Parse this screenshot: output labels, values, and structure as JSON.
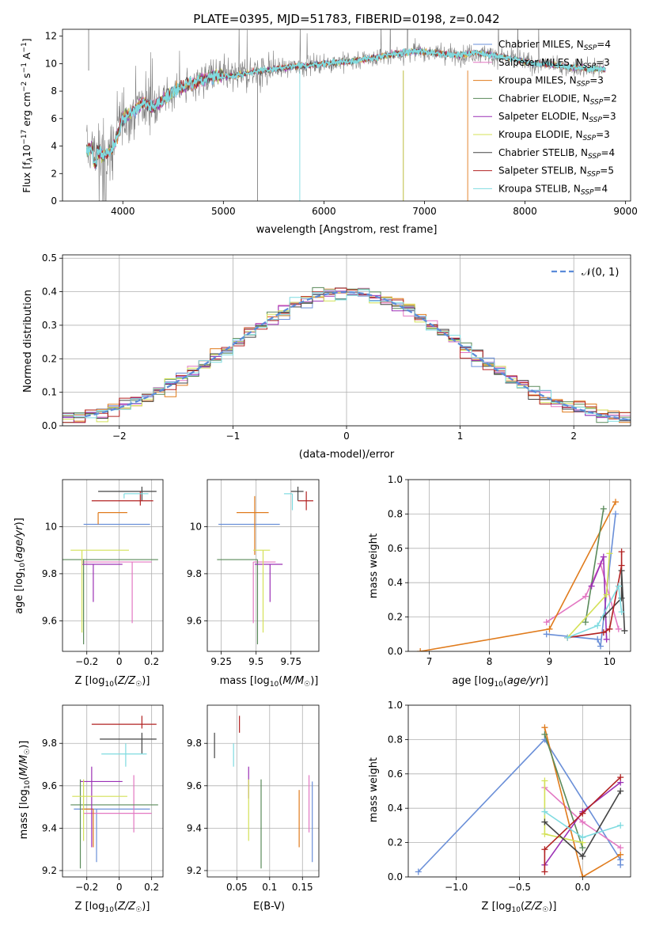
{
  "chart_data": [
    {
      "type": "line",
      "title": "PLATE=0395, MJD=51783, FIBERID=0198, z=0.042",
      "xlabel": "wavelength [Angstrom, rest frame]",
      "ylabel": "Flux [f_λ10^-17 erg cm^-2 s^-1 A^-1]",
      "xlim": [
        3400,
        9050
      ],
      "ylim": [
        0,
        12.5
      ],
      "xticks": [
        4000,
        5000,
        6000,
        7000,
        8000,
        9000
      ],
      "yticks": [
        0,
        2,
        4,
        6,
        8,
        10,
        12
      ],
      "legend": "top-right",
      "series": [
        {
          "name": "Chabrier MILES, N_SSP=4",
          "color": "#6a8fd8"
        },
        {
          "name": "Salpeter MILES, N_SSP=3",
          "color": "#e377c2"
        },
        {
          "name": "Kroupa MILES, N_SSP=3",
          "color": "#e07b1c"
        },
        {
          "name": "Chabrier ELODIE, N_SSP=2",
          "color": "#5a8a5a"
        },
        {
          "name": "Salpeter ELODIE, N_SSP=3",
          "color": "#9b30b5"
        },
        {
          "name": "Kroupa ELODIE, N_SSP=3",
          "color": "#d4e157"
        },
        {
          "name": "Chabrier STELIB, N_SSP=4",
          "color": "#444444"
        },
        {
          "name": "Salpeter STELIB, N_SSP=5",
          "color": "#b22222"
        },
        {
          "name": "Kroupa STELIB, N_SSP=4",
          "color": "#7fdbe0"
        }
      ],
      "data_color": "#808080",
      "continuum": {
        "x": [
          3650,
          3700,
          3800,
          3900,
          4000,
          4100,
          4200,
          4300,
          4500,
          4700,
          4900,
          5100,
          5300,
          5500,
          5700,
          5900,
          6100,
          6300,
          6500,
          6700,
          6900,
          7100,
          7300,
          7500,
          7700,
          7900,
          8100,
          8300,
          8500,
          8800
        ],
        "y": [
          3.7,
          3.9,
          3.2,
          3.8,
          6.0,
          6.5,
          7.2,
          6.8,
          8.0,
          8.6,
          9.1,
          9.1,
          9.4,
          9.6,
          9.8,
          9.9,
          10.1,
          10.2,
          10.4,
          10.7,
          10.9,
          10.8,
          10.6,
          10.8,
          10.6,
          10.3,
          10.0,
          9.9,
          9.7,
          9.6
        ]
      }
    },
    {
      "type": "line",
      "xlabel": "(data-model)/error",
      "ylabel": "Normed distribution",
      "xlim": [
        -2.5,
        2.5
      ],
      "ylim": [
        0,
        0.51
      ],
      "xticks": [
        -2,
        -1,
        0,
        1,
        2
      ],
      "yticks": [
        0.0,
        0.1,
        0.2,
        0.3,
        0.4,
        0.5
      ],
      "legend_entry": "𝒩(0, 1)",
      "legend": "top-right",
      "grid": true,
      "bin_width": 0.1
    },
    {
      "type": "scatter",
      "xlabel": "Z [log10(Z/Z☉)]",
      "ylabel": "age  [log10(age/yr)]",
      "xlim": [
        -0.35,
        0.27
      ],
      "ylim": [
        9.47,
        10.2
      ],
      "xticks": [
        -0.2,
        0.0,
        0.2
      ],
      "yticks": [
        9.6,
        9.8,
        10.0
      ],
      "points": [
        {
          "x": 0.09,
          "y": 10.01,
          "xerr": [
            0.31,
            0.1
          ],
          "yerr": [
            0.0,
            0.0
          ],
          "color": "#6a8fd8"
        },
        {
          "x": 0.08,
          "y": 9.85,
          "xerr": [
            0.31,
            0.12
          ],
          "yerr": [
            0.26,
            0.0
          ],
          "color": "#e377c2"
        },
        {
          "x": -0.13,
          "y": 10.06,
          "xerr": [
            0.0,
            0.18
          ],
          "yerr": [
            0.05,
            0.0
          ],
          "color": "#e07b1c"
        },
        {
          "x": -0.22,
          "y": 9.86,
          "xerr": [
            0.16,
            0.46
          ],
          "yerr": [
            0.36,
            0.0
          ],
          "color": "#5a8a5a"
        },
        {
          "x": -0.16,
          "y": 9.84,
          "xerr": [
            0.07,
            0.18
          ],
          "yerr": [
            0.16,
            0.0
          ],
          "color": "#9b30b5"
        },
        {
          "x": -0.23,
          "y": 9.9,
          "xerr": [
            0.07,
            0.29
          ],
          "yerr": [
            0.35,
            0.0
          ],
          "color": "#d4e157"
        },
        {
          "x": 0.14,
          "y": 10.15,
          "xerr": [
            0.27,
            0.09
          ],
          "yerr": [
            0.04,
            0.02
          ],
          "color": "#444444"
        },
        {
          "x": 0.13,
          "y": 10.11,
          "xerr": [
            0.3,
            0.08
          ],
          "yerr": [
            0.02,
            0.04
          ],
          "color": "#b22222"
        },
        {
          "x": 0.03,
          "y": 10.14,
          "xerr": [
            0.0,
            0.15
          ],
          "yerr": [
            0.02,
            0.0
          ],
          "color": "#7fdbe0"
        }
      ]
    },
    {
      "type": "scatter",
      "xlabel": "mass [log10(M/M☉)]",
      "ylabel": "",
      "xlim": [
        9.15,
        9.95
      ],
      "ylim": [
        9.47,
        10.2
      ],
      "xticks": [
        9.25,
        9.5,
        9.75
      ],
      "yticks": [
        9.6,
        9.8,
        10.0
      ],
      "points": [
        {
          "x": 9.5,
          "y": 10.01,
          "xerr": [
            0.27,
            0.17
          ],
          "yerr": [
            0.0,
            0.0
          ],
          "color": "#6a8fd8"
        },
        {
          "x": 9.48,
          "y": 9.85,
          "xerr": [
            0.0,
            0.16
          ],
          "yerr": [
            0.26,
            0.0
          ],
          "color": "#e377c2"
        },
        {
          "x": 9.49,
          "y": 10.06,
          "xerr": [
            0.13,
            0.1
          ],
          "yerr": [
            0.18,
            0.07
          ],
          "color": "#e07b1c"
        },
        {
          "x": 9.51,
          "y": 9.86,
          "xerr": [
            0.29,
            0.0
          ],
          "yerr": [
            0.36,
            0.0
          ],
          "color": "#5a8a5a"
        },
        {
          "x": 9.6,
          "y": 9.84,
          "xerr": [
            0.11,
            0.09
          ],
          "yerr": [
            0.16,
            0.0
          ],
          "color": "#9b30b5"
        },
        {
          "x": 9.55,
          "y": 9.9,
          "xerr": [
            0.07,
            0.05
          ],
          "yerr": [
            0.35,
            0.0
          ],
          "color": "#d4e157"
        },
        {
          "x": 9.8,
          "y": 10.15,
          "xerr": [
            0.05,
            0.04
          ],
          "yerr": [
            0.04,
            0.02
          ],
          "color": "#444444"
        },
        {
          "x": 9.86,
          "y": 10.11,
          "xerr": [
            0.06,
            0.05
          ],
          "yerr": [
            0.04,
            0.04
          ],
          "color": "#b22222"
        },
        {
          "x": 9.76,
          "y": 10.14,
          "xerr": [
            0.06,
            0.0
          ],
          "yerr": [
            0.07,
            0.0
          ],
          "color": "#7fdbe0"
        }
      ]
    },
    {
      "type": "line",
      "xlabel": "age  [log10(age/yr)]",
      "ylabel": "mass weight",
      "xlim": [
        6.65,
        10.35
      ],
      "ylim": [
        0,
        1.0
      ],
      "xticks": [
        7,
        8,
        9,
        10
      ],
      "yticks": [
        0.0,
        0.2,
        0.4,
        0.6,
        0.8,
        1.0
      ],
      "grid": true,
      "series": [
        {
          "color": "#6a8fd8",
          "x": [
            8.95,
            9.8,
            9.85,
            10.1
          ],
          "y": [
            0.1,
            0.07,
            0.03,
            0.8
          ]
        },
        {
          "color": "#e377c2",
          "x": [
            8.95,
            9.6,
            9.85,
            10.15
          ],
          "y": [
            0.17,
            0.32,
            0.51,
            0.13
          ]
        },
        {
          "color": "#e07b1c",
          "x": [
            6.85,
            9.0,
            10.1
          ],
          "y": [
            0.0,
            0.13,
            0.87
          ]
        },
        {
          "color": "#5a8a5a",
          "x": [
            9.6,
            9.9
          ],
          "y": [
            0.17,
            0.83
          ]
        },
        {
          "color": "#9b30b5",
          "x": [
            9.7,
            9.9,
            9.95
          ],
          "y": [
            0.38,
            0.55,
            0.07
          ]
        },
        {
          "color": "#d4e157",
          "x": [
            9.3,
            9.95,
            10.0
          ],
          "y": [
            0.08,
            0.33,
            0.57
          ]
        },
        {
          "color": "#444444",
          "x": [
            9.9,
            10.2,
            10.2,
            10.25
          ],
          "y": [
            0.2,
            0.31,
            0.47,
            0.12
          ]
        },
        {
          "color": "#b22222",
          "x": [
            9.3,
            9.9,
            10.0,
            10.2,
            10.2
          ],
          "y": [
            0.08,
            0.11,
            0.13,
            0.5,
            0.58
          ]
        },
        {
          "color": "#7fdbe0",
          "x": [
            9.3,
            9.8,
            10.15,
            10.2
          ],
          "y": [
            0.08,
            0.15,
            0.38,
            0.23
          ]
        }
      ]
    },
    {
      "type": "scatter",
      "xlabel": "Z [log10(Z/Z☉)]",
      "ylabel": "mass [log10(M/M☉)]",
      "xlim": [
        -0.35,
        0.27
      ],
      "ylim": [
        9.17,
        9.98
      ],
      "xticks": [
        -0.2,
        0.0,
        0.2
      ],
      "yticks": [
        9.2,
        9.4,
        9.6,
        9.8
      ],
      "points": [
        {
          "x": -0.14,
          "y": 9.49,
          "xerr": [
            0.14,
            0.33
          ],
          "yerr": [
            0.25,
            0.0
          ],
          "color": "#6a8fd8"
        },
        {
          "x": 0.09,
          "y": 9.47,
          "xerr": [
            0.31,
            0.11
          ],
          "yerr": [
            0.09,
            0.18
          ],
          "color": "#e377c2"
        },
        {
          "x": -0.16,
          "y": 9.49,
          "xerr": [
            0.07,
            0.0
          ],
          "yerr": [
            0.18,
            0.0
          ],
          "color": "#e07b1c"
        },
        {
          "x": -0.24,
          "y": 9.51,
          "xerr": [
            0.06,
            0.48
          ],
          "yerr": [
            0.3,
            0.12
          ],
          "color": "#5a8a5a"
        },
        {
          "x": -0.17,
          "y": 9.62,
          "xerr": [
            0.07,
            0.19
          ],
          "yerr": [
            0.31,
            0.07
          ],
          "color": "#9b30b5"
        },
        {
          "x": -0.22,
          "y": 9.55,
          "xerr": [
            0.07,
            0.27
          ],
          "yerr": [
            0.21,
            0.08
          ],
          "color": "#d4e157"
        },
        {
          "x": 0.14,
          "y": 9.82,
          "xerr": [
            0.26,
            0.09
          ],
          "yerr": [
            0.07,
            0.03
          ],
          "color": "#444444"
        },
        {
          "x": 0.14,
          "y": 9.89,
          "xerr": [
            0.31,
            0.09
          ],
          "yerr": [
            0.02,
            0.04
          ],
          "color": "#b22222"
        },
        {
          "x": 0.04,
          "y": 9.75,
          "xerr": [
            0.15,
            0.13
          ],
          "yerr": [
            0.06,
            0.05
          ],
          "color": "#7fdbe0"
        }
      ]
    },
    {
      "type": "scatter",
      "xlabel": "E(B-V)",
      "ylabel": "",
      "xlim": [
        0.005,
        0.175
      ],
      "ylim": [
        9.17,
        9.98
      ],
      "xticks": [
        0.05,
        0.1,
        0.15
      ],
      "yticks": [
        9.2,
        9.4,
        9.6,
        9.8
      ],
      "points": [
        {
          "x": 0.165,
          "y": 9.49,
          "yerr": [
            0.25,
            0.13
          ],
          "color": "#6a8fd8"
        },
        {
          "x": 0.16,
          "y": 9.47,
          "yerr": [
            0.09,
            0.18
          ],
          "color": "#e377c2"
        },
        {
          "x": 0.145,
          "y": 9.49,
          "yerr": [
            0.18,
            0.09
          ],
          "color": "#e07b1c"
        },
        {
          "x": 0.087,
          "y": 9.51,
          "yerr": [
            0.3,
            0.12
          ],
          "color": "#5a8a5a"
        },
        {
          "x": 0.068,
          "y": 9.62,
          "yerr": [
            0.08,
            0.07
          ],
          "color": "#9b30b5"
        },
        {
          "x": 0.068,
          "y": 9.55,
          "yerr": [
            0.21,
            0.08
          ],
          "color": "#d4e157"
        },
        {
          "x": 0.016,
          "y": 9.82,
          "yerr": [
            0.09,
            0.03
          ],
          "color": "#444444"
        },
        {
          "x": 0.054,
          "y": 9.89,
          "yerr": [
            0.04,
            0.04
          ],
          "color": "#b22222"
        },
        {
          "x": 0.045,
          "y": 9.75,
          "yerr": [
            0.06,
            0.05
          ],
          "color": "#7fdbe0"
        }
      ]
    },
    {
      "type": "line",
      "xlabel": "Z [log10(Z/Z☉)]",
      "ylabel": "mass weight",
      "xlim": [
        -1.38,
        0.38
      ],
      "ylim": [
        0,
        1.0
      ],
      "xticks": [
        -1.0,
        -0.5,
        0.0
      ],
      "yticks": [
        0.0,
        0.2,
        0.4,
        0.6,
        0.8,
        1.0
      ],
      "grid": true,
      "series": [
        {
          "color": "#6a8fd8",
          "x": [
            -1.3,
            -0.3,
            0.3,
            0.3
          ],
          "y": [
            0.03,
            0.8,
            0.1,
            0.07
          ]
        },
        {
          "color": "#e377c2",
          "x": [
            -0.3,
            0.0,
            0.3
          ],
          "y": [
            0.52,
            0.32,
            0.17
          ]
        },
        {
          "color": "#e07b1c",
          "x": [
            -0.3,
            0.0,
            0.3
          ],
          "y": [
            0.87,
            0.0,
            0.13
          ]
        },
        {
          "color": "#5a8a5a",
          "x": [
            -0.3,
            0.0
          ],
          "y": [
            0.83,
            0.17
          ]
        },
        {
          "color": "#9b30b5",
          "x": [
            -0.3,
            0.0,
            0.3
          ],
          "y": [
            0.07,
            0.38,
            0.55
          ]
        },
        {
          "color": "#d4e157",
          "x": [
            -0.3,
            -0.3,
            0.0
          ],
          "y": [
            0.56,
            0.25,
            0.2
          ]
        },
        {
          "color": "#444444",
          "x": [
            -0.3,
            0.0,
            0.3
          ],
          "y": [
            0.32,
            0.12,
            0.5
          ]
        },
        {
          "color": "#b22222",
          "x": [
            -0.3,
            -0.3,
            0.0,
            0.3
          ],
          "y": [
            0.03,
            0.16,
            0.37,
            0.58
          ]
        },
        {
          "color": "#7fdbe0",
          "x": [
            -0.3,
            0.0,
            0.3
          ],
          "y": [
            0.38,
            0.23,
            0.3
          ]
        }
      ]
    }
  ]
}
